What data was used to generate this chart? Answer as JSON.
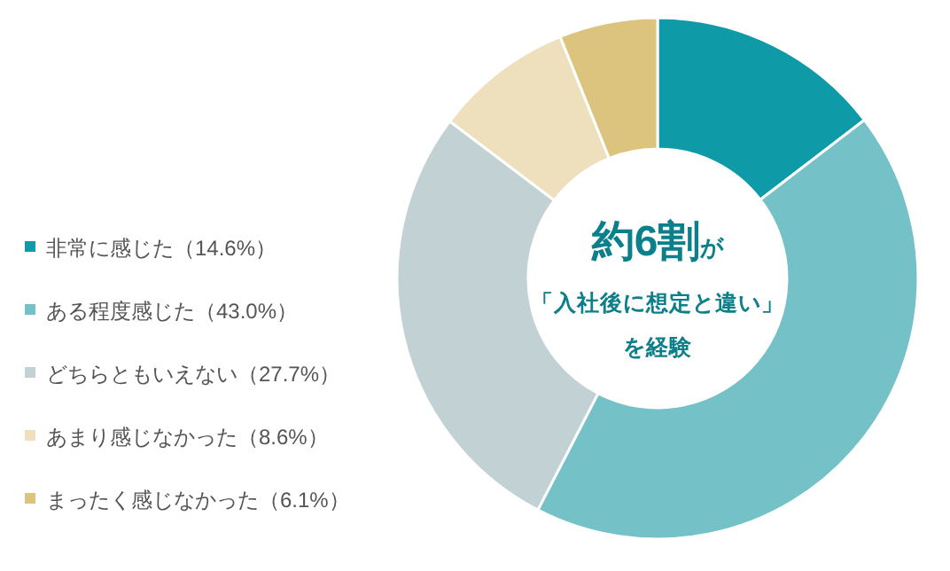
{
  "chart_data": {
    "type": "donut",
    "categories": [
      "非常に感じた（14.6%）",
      "ある程度感じた（43.0%）",
      "どちらともいえない（27.7%）",
      "あまり感じなかった（8.6%）",
      "まったく感じなかった（6.1%）"
    ],
    "values": [
      14.6,
      43.0,
      27.7,
      8.6,
      6.1
    ],
    "colors": [
      "#0e9aa7",
      "#74c2c8",
      "#c2d1d3",
      "#efe0bd",
      "#dcc47f"
    ],
    "legend": "left",
    "annotations": [
      "約6割",
      "が",
      "「入社後に想定と違い」",
      "を経験"
    ]
  }
}
